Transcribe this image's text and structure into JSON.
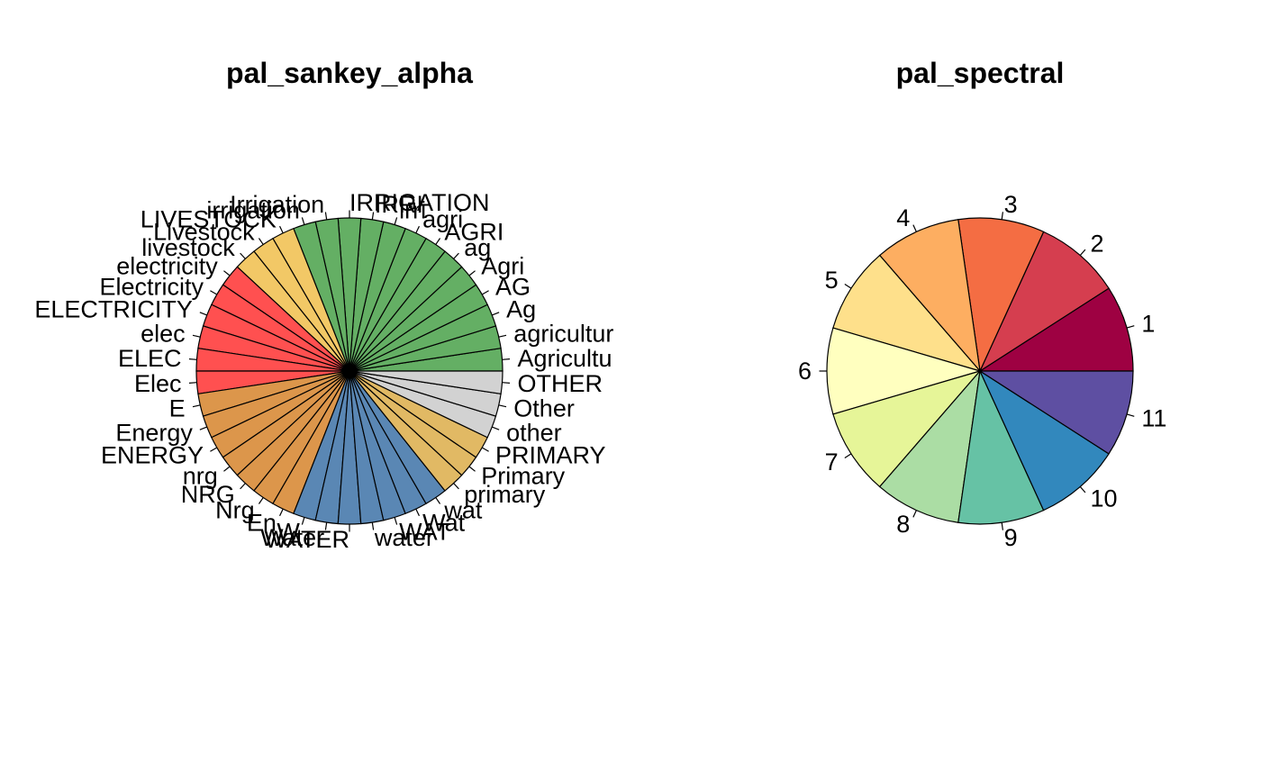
{
  "chart_data": [
    {
      "type": "pie",
      "title": "pal_sankey_alpha",
      "labels": [
        "Agricultu",
        "agricultur",
        "Ag",
        "AG",
        "Agri",
        "ag",
        "AGRI",
        "agri",
        "irri",
        "IRRI",
        "IRRIGATION",
        "Irrigation",
        "irrigation",
        "LIVESTOCK",
        "Livestock",
        "livestock",
        "electricity",
        "Electricity",
        "ELECTRICITY",
        "elec",
        "ELEC",
        "Elec",
        "E",
        "Energy",
        "ENERGY",
        "nrg",
        "NRG",
        "Nrg",
        "En",
        "W",
        "Water",
        "WATER",
        "water",
        "WAT",
        "Wat",
        "wat",
        "primary",
        "Primary",
        "PRIMARY",
        "other",
        "Other",
        "OTHER"
      ],
      "colors": [
        "#64AF64",
        "#64AF64",
        "#64AF64",
        "#64AF64",
        "#64AF64",
        "#64AF64",
        "#64AF64",
        "#64AF64",
        "#64AF64",
        "#64AF64",
        "#64AF64",
        "#64AF64",
        "#64AF64",
        "#F2C866",
        "#F2C866",
        "#F2C866",
        "#FF5050",
        "#FF5050",
        "#FF5050",
        "#FF5050",
        "#FF5050",
        "#FF5050",
        "#DC964B",
        "#DC964B",
        "#DC964B",
        "#DC964B",
        "#DC964B",
        "#DC964B",
        "#DC964B",
        "#5A87B4",
        "#5A87B4",
        "#5A87B4",
        "#5A87B4",
        "#5A87B4",
        "#5A87B4",
        "#5A87B4",
        "#E1B964",
        "#E1B964",
        "#E1B964",
        "#D2D2D2",
        "#D2D2D2",
        "#D2D2D2"
      ],
      "values": [
        1,
        1,
        1,
        1,
        1,
        1,
        1,
        1,
        1,
        1,
        1,
        1,
        1,
        1,
        1,
        1,
        1,
        1,
        1,
        1,
        1,
        1,
        1,
        1,
        1,
        1,
        1,
        1,
        1,
        1,
        1,
        1,
        1,
        1,
        1,
        1,
        1,
        1,
        1,
        1,
        1,
        1
      ]
    },
    {
      "type": "pie",
      "title": "pal_spectral",
      "labels": [
        "1",
        "2",
        "3",
        "4",
        "5",
        "6",
        "7",
        "8",
        "9",
        "10",
        "11"
      ],
      "colors": [
        "#9E0142",
        "#D53E4F",
        "#F46D43",
        "#FDAE61",
        "#FEE08B",
        "#FFFFBF",
        "#E6F598",
        "#ABDDA4",
        "#66C2A5",
        "#3288BD",
        "#5E4FA2"
      ],
      "values": [
        1,
        1,
        1,
        1,
        1,
        1,
        1,
        1,
        1,
        1,
        1
      ]
    }
  ]
}
